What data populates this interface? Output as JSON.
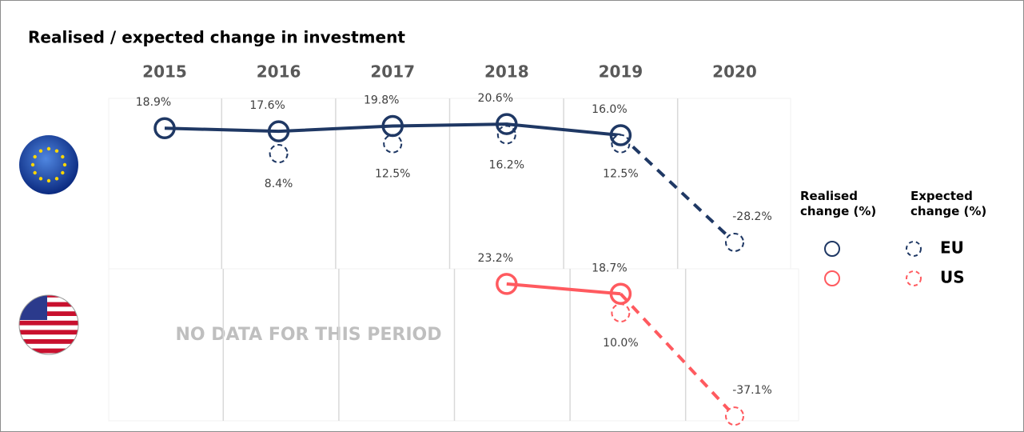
{
  "chart_data": {
    "type": "line",
    "title": "Realised / expected change in investment",
    "categories": [
      "2015",
      "2016",
      "2017",
      "2018",
      "2019",
      "2020"
    ],
    "legend_headers": [
      "Realised change (%)",
      "Expected change (%)"
    ],
    "annotation": "NO DATA FOR THIS PERIOD",
    "series": [
      {
        "name": "EU",
        "color": "#1f3864",
        "realised": {
          "values": [
            18.9,
            17.6,
            19.8,
            20.6,
            16.0,
            null
          ],
          "value_labels": [
            "18.9%",
            "17.6%",
            "19.8%",
            "20.6%",
            "16.0%",
            null
          ]
        },
        "expected": {
          "values": [
            null,
            8.4,
            12.5,
            16.2,
            12.5,
            -28.2
          ],
          "value_labels": [
            null,
            "8.4%",
            "12.5%",
            "16.2%",
            "12.5%",
            "-28.2%"
          ]
        }
      },
      {
        "name": "US",
        "color": "#ff5a5f",
        "realised": {
          "values": [
            null,
            null,
            null,
            23.2,
            18.7,
            null
          ],
          "value_labels": [
            null,
            null,
            null,
            "23.2%",
            "18.7%",
            null
          ]
        },
        "expected": {
          "values": [
            null,
            null,
            null,
            null,
            10.0,
            -37.1
          ],
          "value_labels": [
            null,
            null,
            null,
            null,
            "10.0%",
            "-37.1%"
          ]
        }
      }
    ]
  }
}
